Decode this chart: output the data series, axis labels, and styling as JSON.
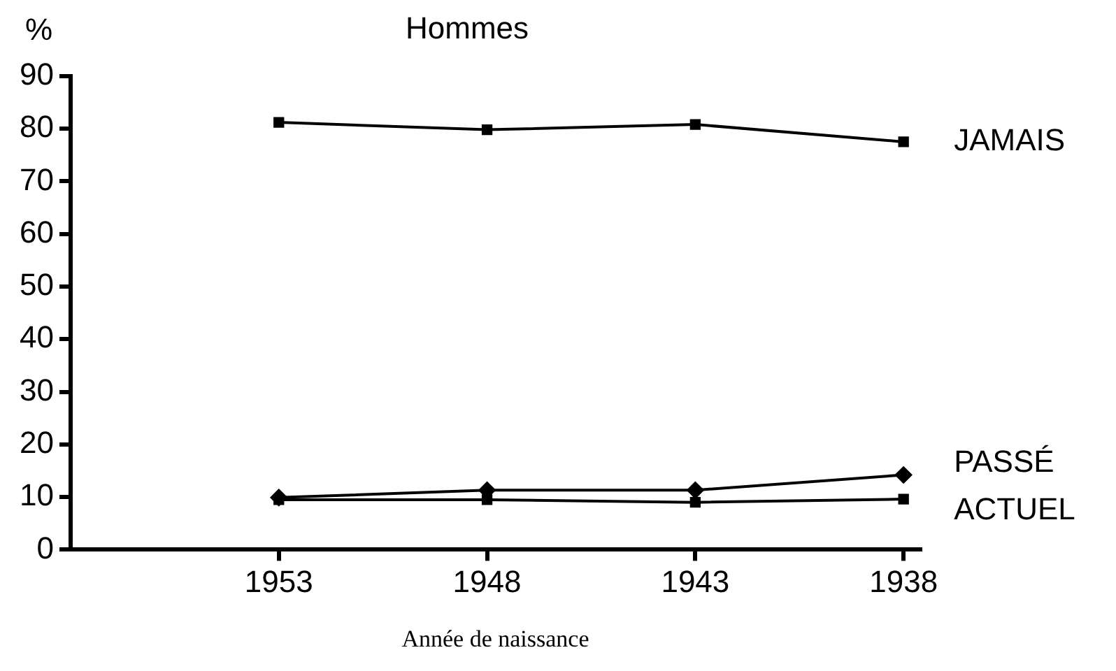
{
  "chart_data": {
    "type": "line",
    "title": "Hommes",
    "ylabel": "%",
    "xlabel": "Année de naissance",
    "categories": [
      "1953",
      "1948",
      "1943",
      "1938"
    ],
    "series": [
      {
        "name": "JAMAIS",
        "color": "#000000",
        "marker": "square",
        "values": [
          81.2,
          79.8,
          80.8,
          77.5
        ]
      },
      {
        "name": "PASSÉ",
        "color": "#000000",
        "marker": "diamond",
        "values": [
          9.9,
          11.3,
          11.3,
          14.2
        ]
      },
      {
        "name": "ACTUEL",
        "color": "#000000",
        "marker": "square",
        "values": [
          9.5,
          9.5,
          9.0,
          9.6
        ]
      }
    ],
    "ylim": [
      0,
      90
    ],
    "yticks": [
      0,
      10,
      20,
      30,
      40,
      50,
      60,
      70,
      80,
      90
    ],
    "grid": false,
    "legend": false
  }
}
